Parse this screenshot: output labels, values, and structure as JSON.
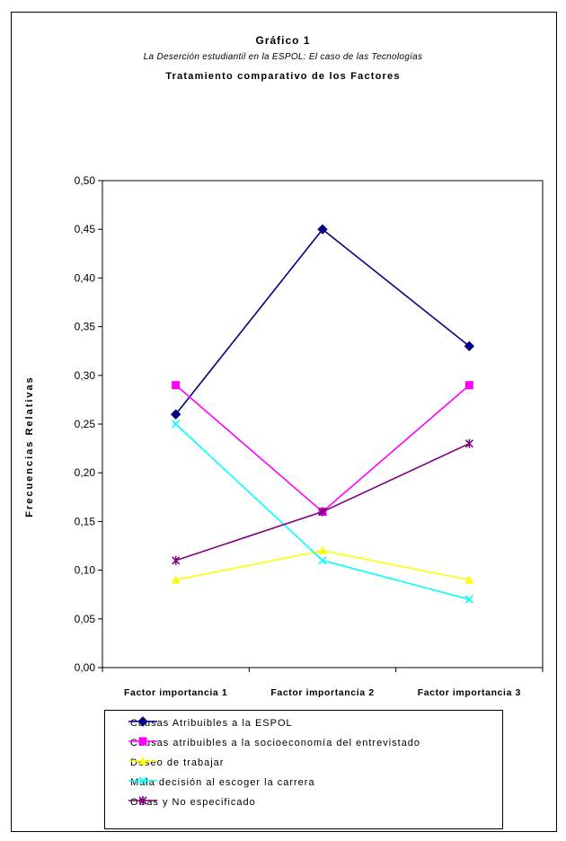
{
  "chart_data": {
    "type": "line",
    "title": "Gráfico 1",
    "subtitle": "La  Deserción estudiantil en la ESPOL: El caso  de las Tecnologías",
    "subtitle2": "Tratamiento comparativo de los Factores",
    "ylabel": "Frecuencias Relativas",
    "xlabel": "",
    "categories": [
      "Factor importancia 1",
      "Factor importancia 2",
      "Factor importancia 3"
    ],
    "ylim": [
      0,
      0.5
    ],
    "yticks": [
      "0,00",
      "0,05",
      "0,10",
      "0,15",
      "0,20",
      "0,25",
      "0,30",
      "0,35",
      "0,40",
      "0,45",
      "0,50"
    ],
    "grid": false,
    "legend_position": "bottom",
    "series": [
      {
        "name": "Causas Atribuibles a la ESPOL",
        "values": [
          0.26,
          0.45,
          0.33
        ],
        "color": "#000080",
        "marker": "diamond"
      },
      {
        "name": "Causas atribuibles a la socioeconomía del entrevistado",
        "values": [
          0.29,
          0.16,
          0.29
        ],
        "color": "#ff00ff",
        "marker": "square"
      },
      {
        "name": "Deseo de trabajar",
        "values": [
          0.09,
          0.12,
          0.09
        ],
        "color": "#ffff00",
        "marker": "triangle"
      },
      {
        "name": "Mala decisión al escoger la carrera",
        "values": [
          0.25,
          0.11,
          0.07
        ],
        "color": "#00ffff",
        "marker": "x"
      },
      {
        "name": "Otras  y No especificado",
        "values": [
          0.11,
          0.16,
          0.23
        ],
        "color": "#800080",
        "marker": "star"
      }
    ]
  }
}
